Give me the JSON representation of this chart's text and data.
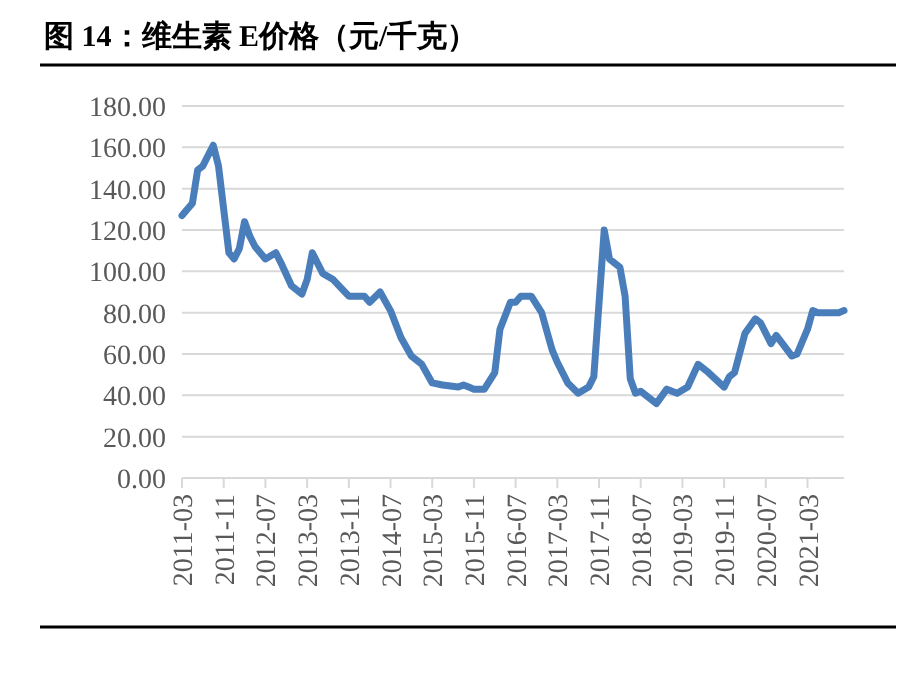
{
  "chart_data": {
    "type": "line",
    "title": "图 14：维生素 E价格（元/千克）",
    "color": "#4a7ebb",
    "grid": "y",
    "marker": "none",
    "line_style": "solid",
    "x": [
      "2011-03",
      "2011-05",
      "2011-06",
      "2011-07",
      "2011-09",
      "2011-10",
      "2011-12",
      "2012-01",
      "2012-02",
      "2012-03",
      "2012-04",
      "2012-05",
      "2012-07",
      "2012-09",
      "2012-10",
      "2012-12",
      "2013-02",
      "2013-03",
      "2013-04",
      "2013-05",
      "2013-06",
      "2013-08",
      "2013-11",
      "2014-02",
      "2014-03",
      "2014-05",
      "2014-07",
      "2014-09",
      "2014-11",
      "2015-01",
      "2015-03",
      "2015-05",
      "2015-08",
      "2015-09",
      "2015-10",
      "2015-11",
      "2016-01",
      "2016-03",
      "2016-04",
      "2016-06",
      "2016-07",
      "2016-08",
      "2016-10",
      "2016-12",
      "2017-02",
      "2017-03",
      "2017-05",
      "2017-07",
      "2017-09",
      "2017-10",
      "2017-12",
      "2018-01",
      "2018-03",
      "2018-04",
      "2018-05",
      "2018-06",
      "2018-07",
      "2018-10",
      "2018-12",
      "2019-02",
      "2019-04",
      "2019-06",
      "2019-08",
      "2019-11",
      "2019-12",
      "2020-01",
      "2020-03",
      "2020-05",
      "2020-06",
      "2020-08",
      "2020-09",
      "2020-12",
      "2021-01",
      "2021-03",
      "2021-04",
      "2021-05",
      "2021-07",
      "2021-09",
      "2021-10"
    ],
    "values": [
      127,
      133,
      149,
      151,
      161,
      151,
      109,
      106,
      111,
      124,
      117,
      112,
      106,
      109,
      104,
      93,
      89,
      96,
      109,
      104,
      99,
      96,
      88,
      88,
      85,
      90,
      81,
      68,
      59,
      55,
      46,
      45,
      44,
      45,
      44,
      43,
      43,
      51,
      72,
      85,
      85,
      88,
      88,
      80,
      62,
      56,
      46,
      41,
      44,
      49,
      120,
      106,
      102,
      88,
      48,
      41,
      42,
      36,
      43,
      41,
      44,
      55,
      51,
      44,
      49,
      51,
      70,
      77,
      75,
      65,
      69,
      59,
      60,
      72,
      81,
      80,
      80,
      80,
      81
    ],
    "xlim": [
      "2011-03",
      "2021-10"
    ],
    "xticks": [
      "2011-03",
      "2011-11",
      "2012-07",
      "2013-03",
      "2013-11",
      "2014-07",
      "2015-03",
      "2015-11",
      "2016-07",
      "2017-03",
      "2017-11",
      "2018-07",
      "2019-03",
      "2019-11",
      "2020-07",
      "2021-03"
    ],
    "ylim": [
      0,
      180
    ],
    "yticks": [
      {
        "value": 0,
        "label": "0.00"
      },
      {
        "value": 20,
        "label": "20.00"
      },
      {
        "value": 40,
        "label": "40.00"
      },
      {
        "value": 60,
        "label": "60.00"
      },
      {
        "value": 80,
        "label": "80.00"
      },
      {
        "value": 100,
        "label": "100.00"
      },
      {
        "value": 120,
        "label": "120.00"
      },
      {
        "value": 140,
        "label": "140.00"
      },
      {
        "value": 160,
        "label": "160.00"
      },
      {
        "value": 180,
        "label": "180.00"
      }
    ]
  }
}
